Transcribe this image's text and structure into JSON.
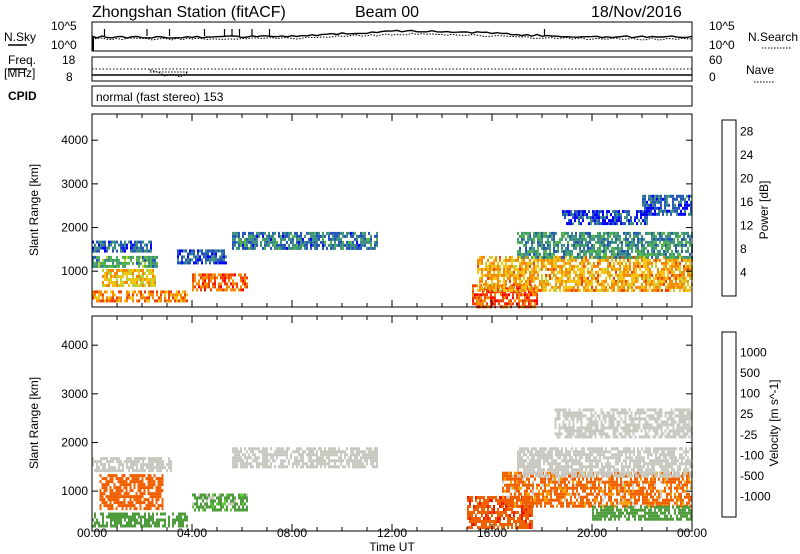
{
  "header": {
    "station_title": "Zhongshan Station (fitACF)",
    "beam": "Beam 00",
    "date": "18/Nov/2016"
  },
  "top_panels": {
    "noise": {
      "left_label": "N.Sky",
      "left_ticks": [
        "10^5",
        "10^0"
      ],
      "right_label": "N.Search",
      "right_ticks": [
        "10^5",
        "10^0"
      ]
    },
    "freq": {
      "left_label_line1": "Freq.",
      "left_label_line2": "[MHz]",
      "left_ticks": [
        "18",
        "8"
      ],
      "right_label": "Nave",
      "right_ticks": [
        "60",
        "0"
      ]
    },
    "cpid": {
      "label": "CPID",
      "value_text": "normal (fast stereo) 153"
    }
  },
  "chart_data": [
    {
      "type": "heatmap",
      "name": "power-panel",
      "ylabel": "Slant Range [km]",
      "xlabel": "",
      "ylim": [
        180,
        4600
      ],
      "xlim_hours": [
        0,
        24
      ],
      "x_tick_labels": [
        "00:00",
        "04:00",
        "08:00",
        "12:00",
        "16:00",
        "20:00",
        "00:00"
      ],
      "y_tick_labels": [
        "1000",
        "2000",
        "3000",
        "4000"
      ],
      "y_ticks": [
        1000,
        2000,
        3000,
        4000
      ],
      "colorbar": {
        "label": "Power [dB]",
        "tick_labels": [
          "4",
          "8",
          "12",
          "16",
          "20",
          "24",
          "28"
        ],
        "ticks": [
          4,
          8,
          12,
          16,
          20,
          24,
          28
        ],
        "range": [
          0,
          30
        ],
        "colors": [
          "#0000ff",
          "#2456b8",
          "#3d8f80",
          "#4fb34a",
          "#b8d235",
          "#f6c410",
          "#f58a00",
          "#f04000",
          "#ff0000"
        ]
      },
      "regions": [
        {
          "t0": 0.0,
          "t1": 2.4,
          "r0": 1450,
          "r1": 1700,
          "value": 6
        },
        {
          "t0": 0.0,
          "t1": 2.6,
          "r0": 1100,
          "r1": 1350,
          "value": 10
        },
        {
          "t0": 0.4,
          "t1": 2.5,
          "r0": 650,
          "r1": 1050,
          "value": 18
        },
        {
          "t0": 0.0,
          "t1": 3.8,
          "r0": 300,
          "r1": 560,
          "value": 22
        },
        {
          "t0": 4.0,
          "t1": 6.2,
          "r0": 600,
          "r1": 950,
          "value": 24
        },
        {
          "t0": 5.6,
          "t1": 11.4,
          "r0": 1500,
          "r1": 1900,
          "value": 7
        },
        {
          "t0": 3.4,
          "t1": 5.4,
          "r0": 1200,
          "r1": 1500,
          "value": 5
        },
        {
          "t0": 15.2,
          "t1": 17.8,
          "r0": 200,
          "r1": 700,
          "value": 24
        },
        {
          "t0": 15.4,
          "t1": 24.0,
          "r0": 550,
          "r1": 1350,
          "value": 20
        },
        {
          "t0": 17.0,
          "t1": 24.0,
          "r0": 1300,
          "r1": 1900,
          "value": 9
        },
        {
          "t0": 18.8,
          "t1": 22.2,
          "r0": 2100,
          "r1": 2400,
          "value": 4
        },
        {
          "t0": 22.0,
          "t1": 24.0,
          "r0": 2300,
          "r1": 2750,
          "value": 5
        }
      ]
    },
    {
      "type": "heatmap",
      "name": "velocity-panel",
      "ylabel": "Slant Range [km]",
      "xlabel": "Time UT",
      "ylim": [
        180,
        4600
      ],
      "xlim_hours": [
        0,
        24
      ],
      "x_tick_labels": [
        "00:00",
        "04:00",
        "08:00",
        "12:00",
        "16:00",
        "20:00",
        "00:00"
      ],
      "y_tick_labels": [
        "1000",
        "2000",
        "3000",
        "4000"
      ],
      "y_ticks": [
        1000,
        2000,
        3000,
        4000
      ],
      "colorbar": {
        "label": "Velocity [m s^-1]",
        "tick_labels": [
          "1000",
          "500",
          "100",
          "25",
          "-25",
          "-100",
          "-500",
          "-1000"
        ],
        "colors": [
          "#2850a8",
          "#357a5c",
          "#4e9c3c",
          "#5fcf3a",
          "#c8c8c0",
          "#f7a000",
          "#f06000",
          "#ef1800",
          "#ff0000"
        ]
      },
      "regions": [
        {
          "t0": 0.0,
          "t1": 3.2,
          "r0": 1450,
          "r1": 1700,
          "value": 0
        },
        {
          "t0": 0.3,
          "t1": 2.8,
          "r0": 650,
          "r1": 1350,
          "value": -300
        },
        {
          "t0": 0.0,
          "t1": 3.8,
          "r0": 300,
          "r1": 560,
          "value": 300
        },
        {
          "t0": 4.0,
          "t1": 6.2,
          "r0": 600,
          "r1": 950,
          "value": 200
        },
        {
          "t0": 5.6,
          "t1": 11.4,
          "r0": 1500,
          "r1": 1900,
          "value": 0
        },
        {
          "t0": 15.0,
          "t1": 17.6,
          "r0": 250,
          "r1": 900,
          "value": -400
        },
        {
          "t0": 16.4,
          "t1": 24.0,
          "r0": 700,
          "r1": 1400,
          "value": -200
        },
        {
          "t0": 17.0,
          "t1": 24.0,
          "r0": 1300,
          "r1": 1900,
          "value": 0
        },
        {
          "t0": 18.5,
          "t1": 24.0,
          "r0": 2100,
          "r1": 2700,
          "value": 0
        },
        {
          "t0": 20.0,
          "t1": 24.0,
          "r0": 400,
          "r1": 700,
          "value": 300
        }
      ]
    }
  ]
}
